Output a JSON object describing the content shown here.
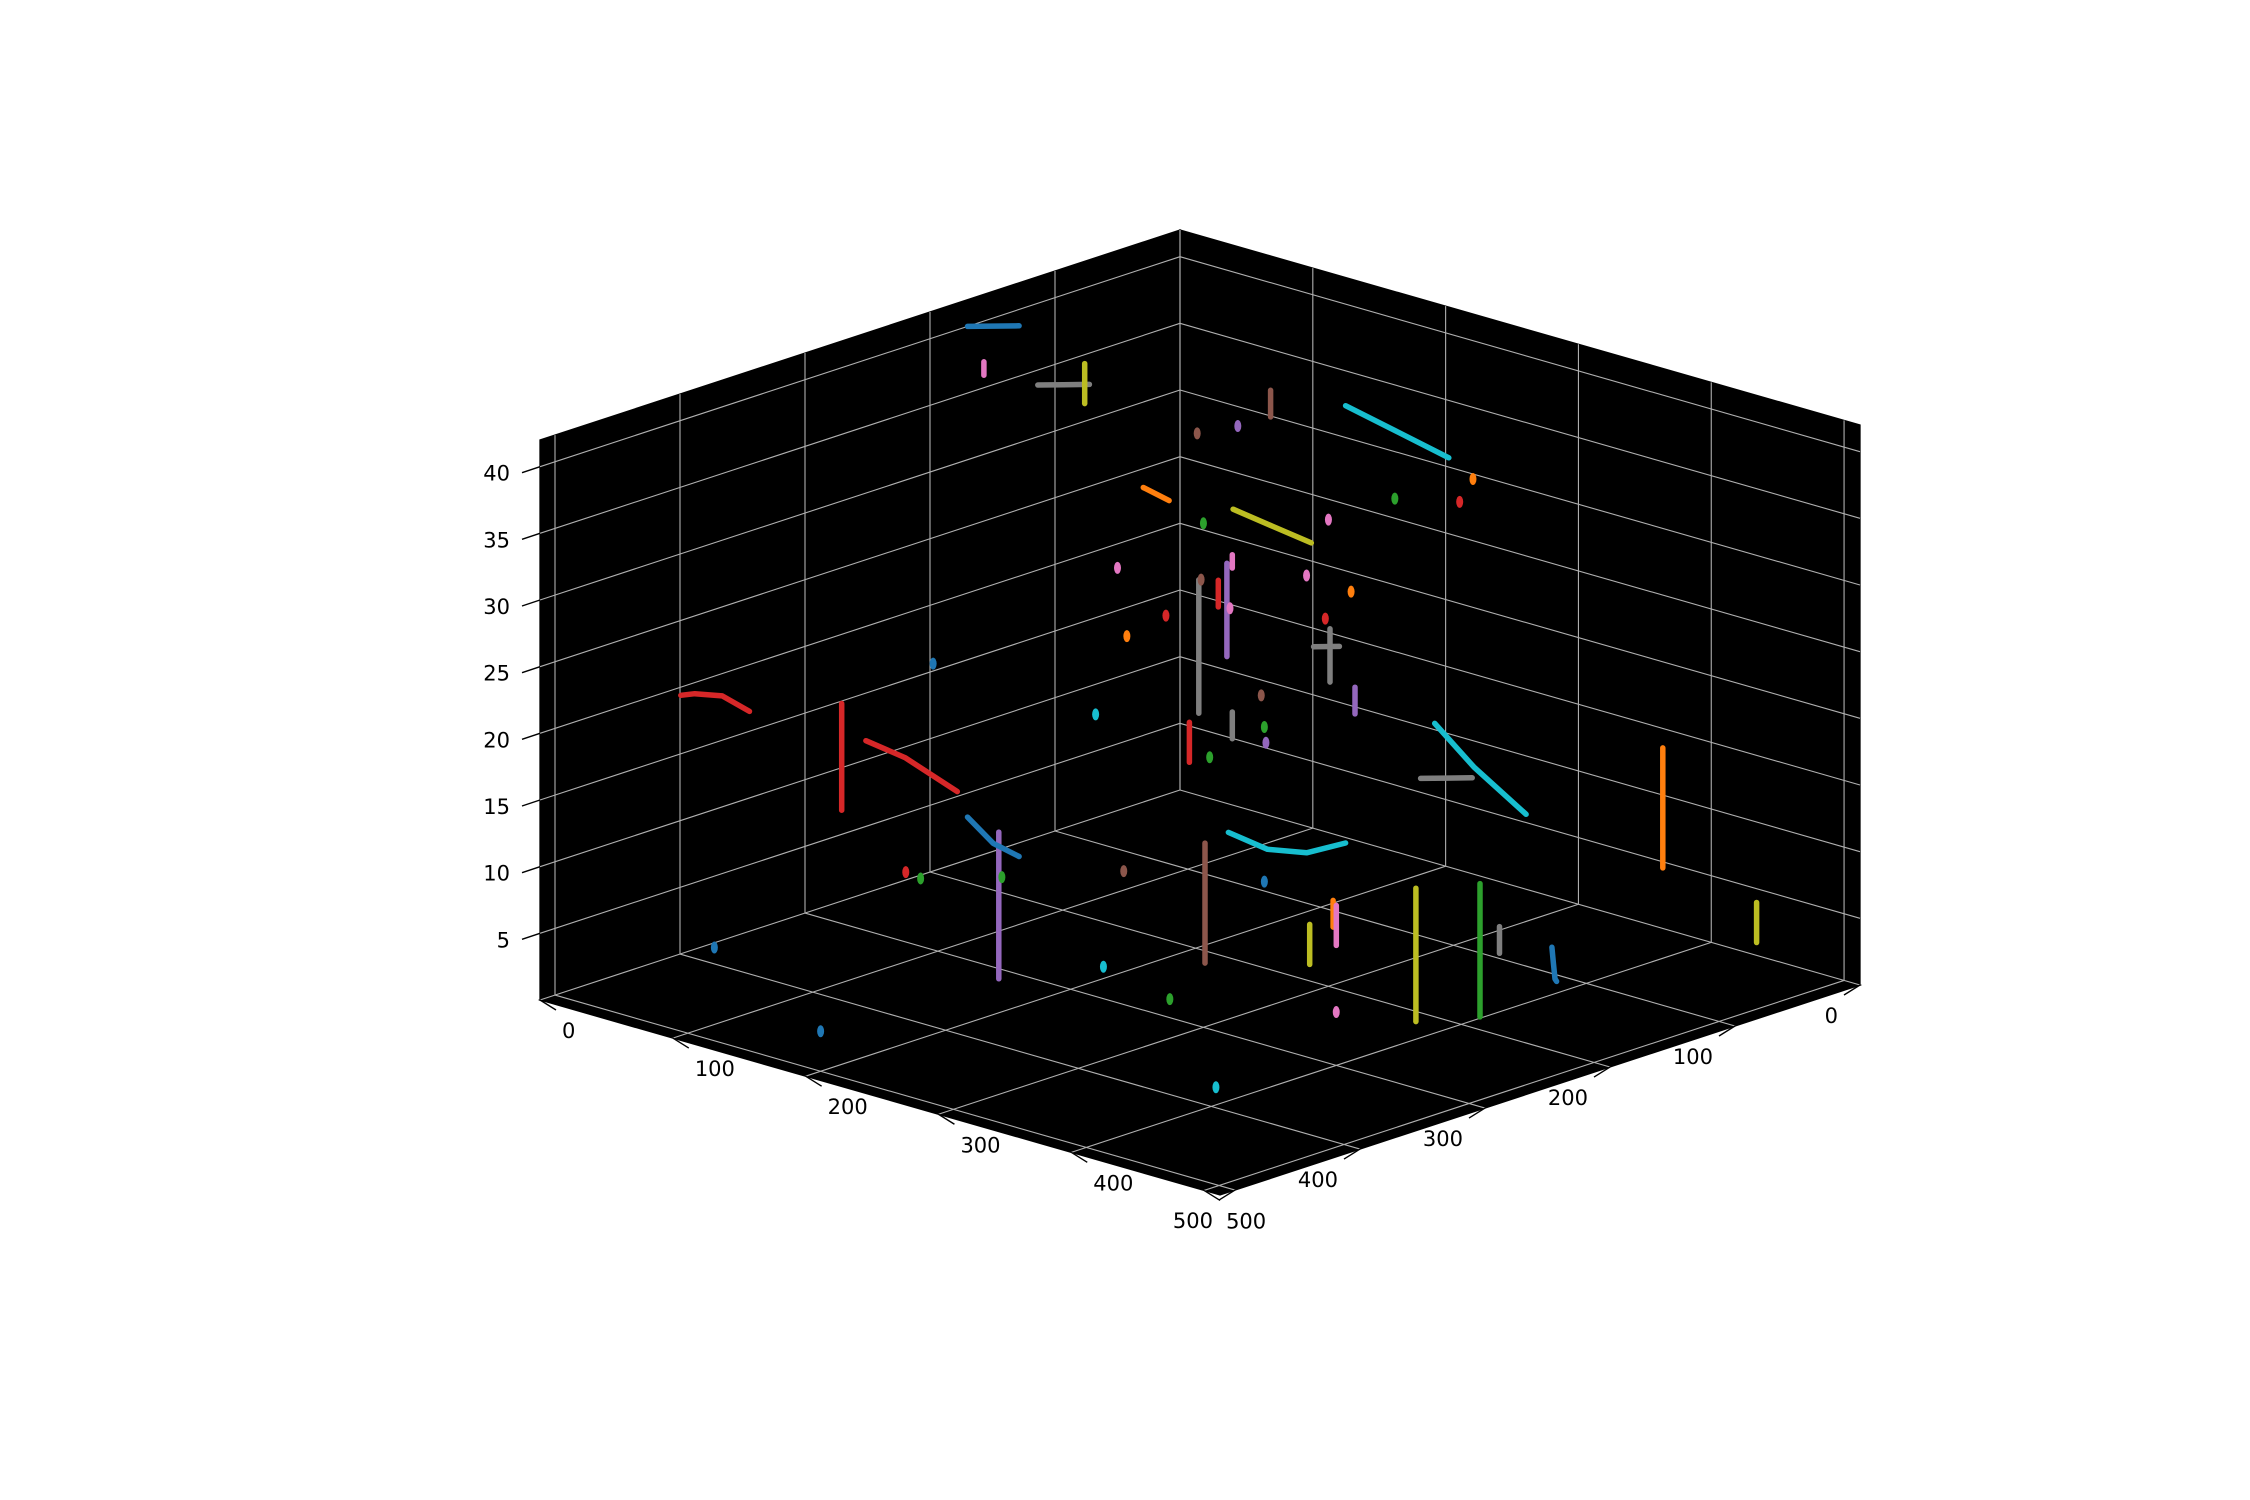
{
  "chart_data": {
    "type": "3d-line",
    "title": "",
    "xlabel": "",
    "ylabel": "",
    "zlabel": "",
    "xlim": [
      0,
      512
    ],
    "ylim": [
      0,
      512
    ],
    "zlim": [
      0,
      42
    ],
    "x_ticks": [
      0,
      100,
      200,
      300,
      400,
      500
    ],
    "y_ticks": [
      0,
      100,
      200,
      300,
      400,
      500
    ],
    "z_ticks": [
      5,
      10,
      15,
      20,
      25,
      30,
      35,
      40
    ],
    "x_tick_labels": [
      "0",
      "100",
      "200",
      "300",
      "400",
      "500"
    ],
    "y_tick_labels": [
      "0",
      "100",
      "200",
      "300",
      "400",
      "500"
    ],
    "z_tick_labels": [
      "5",
      "10",
      "15",
      "20",
      "25",
      "30",
      "35",
      "40"
    ],
    "grid": true,
    "pane_color": "#000000",
    "view": {
      "elev": 30,
      "azim": 45
    },
    "series_colors": [
      "#1f77b4",
      "#ff7f0e",
      "#2ca02c",
      "#d62728",
      "#9467bd",
      "#8c564b",
      "#e377c2",
      "#7f7f7f",
      "#bcbd22",
      "#17becf"
    ],
    "tracks": [
      {
        "color": "#d62728",
        "points": [
          [
            90,
            440,
            22
          ],
          [
            60,
            430,
            22
          ],
          [
            30,
            420,
            21
          ],
          [
            10,
            410,
            20
          ]
        ]
      },
      {
        "color": "#d62728",
        "points": [
          [
            150,
            430,
            24
          ],
          [
            150,
            430,
            20
          ],
          [
            150,
            430,
            16
          ]
        ]
      },
      {
        "color": "#d62728",
        "points": [
          [
            140,
            400,
            20
          ],
          [
            160,
            390,
            19
          ],
          [
            190,
            380,
            17
          ]
        ]
      },
      {
        "color": "#9467bd",
        "points": [
          [
            240,
            400,
            16
          ],
          [
            240,
            400,
            11
          ],
          [
            240,
            400,
            5
          ]
        ]
      },
      {
        "color": "#1f77b4",
        "points": [
          [
            160,
            340,
            13
          ],
          [
            170,
            330,
            11
          ],
          [
            180,
            320,
            10
          ]
        ]
      },
      {
        "color": "#17becf",
        "points": [
          [
            300,
            280,
            14
          ],
          [
            320,
            270,
            13
          ],
          [
            340,
            260,
            13
          ],
          [
            360,
            250,
            14
          ]
        ]
      },
      {
        "color": "#8c564b",
        "points": [
          [
            320,
            320,
            15
          ],
          [
            320,
            320,
            10
          ],
          [
            320,
            320,
            6
          ]
        ]
      },
      {
        "color": "#bcbd22",
        "points": [
          [
            380,
            300,
            10
          ],
          [
            380,
            300,
            7
          ]
        ]
      },
      {
        "color": "#ff7f0e",
        "points": [
          [
            360,
            260,
            10
          ],
          [
            360,
            260,
            8
          ]
        ]
      },
      {
        "color": "#e377c2",
        "points": [
          [
            400,
            300,
            12
          ],
          [
            400,
            300,
            9
          ]
        ]
      },
      {
        "color": "#bcbd22",
        "points": [
          [
            460,
            300,
            15
          ],
          [
            460,
            300,
            10
          ],
          [
            460,
            300,
            5
          ]
        ]
      },
      {
        "color": "#17becf",
        "points": [
          [
            380,
            200,
            22
          ],
          [
            400,
            190,
            19
          ],
          [
            430,
            180,
            16
          ]
        ]
      },
      {
        "color": "#1f77b4",
        "points": [
          [
            500,
            230,
            7
          ],
          [
            480,
            210,
            6
          ],
          [
            460,
            190,
            6
          ],
          [
            440,
            170,
            6
          ]
        ]
      },
      {
        "color": "#2ca02c",
        "points": [
          [
            480,
            270,
            15
          ],
          [
            480,
            270,
            10
          ],
          [
            480,
            270,
            5
          ]
        ]
      },
      {
        "color": "#ff7f0e",
        "points": [
          [
            420,
            60,
            17
          ],
          [
            420,
            60,
            12
          ],
          [
            420,
            60,
            8
          ]
        ]
      },
      {
        "color": "#bcbd22",
        "points": [
          [
            500,
            70,
            8
          ],
          [
            500,
            70,
            5
          ]
        ]
      },
      {
        "color": "#17becf",
        "points": [
          [
            240,
            40,
            33
          ],
          [
            220,
            60,
            35
          ],
          [
            200,
            80,
            37
          ]
        ]
      },
      {
        "color": "#9467bd",
        "points": [
          [
            280,
            260,
            33
          ],
          [
            280,
            260,
            29
          ],
          [
            280,
            260,
            26
          ]
        ]
      },
      {
        "color": "#7f7f7f",
        "points": [
          [
            240,
            240,
            30
          ],
          [
            240,
            240,
            25
          ],
          [
            240,
            240,
            20
          ]
        ]
      },
      {
        "color": "#7f7f7f",
        "points": [
          [
            120,
            200,
            40
          ],
          [
            110,
            210,
            40
          ],
          [
            100,
            220,
            40
          ]
        ]
      },
      {
        "color": "#1f77b4",
        "points": [
          [
            20,
            150,
            40
          ],
          [
            10,
            160,
            40
          ],
          [
            0,
            170,
            40
          ]
        ]
      },
      {
        "color": "#bcbd22",
        "points": [
          [
            60,
            140,
            38
          ],
          [
            60,
            140,
            35
          ]
        ]
      },
      {
        "color": "#ff7f0e",
        "points": [
          [
            180,
            200,
            33
          ],
          [
            170,
            210,
            34
          ]
        ]
      },
      {
        "color": "#bcbd22",
        "points": [
          [
            240,
            150,
            30
          ],
          [
            220,
            160,
            31
          ],
          [
            200,
            170,
            32
          ]
        ]
      },
      {
        "color": "#9467bd",
        "points": [
          [
            320,
            200,
            23
          ],
          [
            320,
            200,
            21
          ]
        ]
      },
      {
        "color": "#7f7f7f",
        "points": [
          [
            380,
            170,
            17
          ],
          [
            370,
            180,
            17
          ],
          [
            360,
            190,
            17
          ]
        ]
      },
      {
        "color": "#7f7f7f",
        "points": [
          [
            280,
            170,
            24
          ],
          [
            270,
            180,
            24
          ]
        ]
      },
      {
        "color": "#d62728",
        "points": [
          [
            280,
            290,
            22
          ],
          [
            280,
            290,
            19
          ]
        ]
      },
      {
        "color": "#7f7f7f",
        "points": [
          [
            350,
            330,
            26
          ],
          [
            350,
            330,
            24
          ]
        ]
      },
      {
        "color": "#7f7f7f",
        "points": [
          [
            320,
            220,
            28
          ],
          [
            320,
            220,
            24
          ]
        ]
      },
      {
        "color": "#d62728",
        "points": [
          [
            330,
            320,
            35
          ],
          [
            330,
            320,
            33
          ]
        ]
      },
      {
        "color": "#e377c2",
        "points": [
          [
            190,
            160,
            28
          ],
          [
            190,
            160,
            27
          ]
        ]
      },
      {
        "color": "#7f7f7f",
        "points": [
          [
            410,
            180,
            7
          ],
          [
            410,
            180,
            5
          ]
        ]
      },
      {
        "color": "#8c564b",
        "points": [
          [
            200,
            140,
            40
          ],
          [
            200,
            140,
            38
          ]
        ]
      },
      {
        "color": "#e377c2",
        "points": [
          [
            50,
            210,
            40
          ],
          [
            50,
            210,
            39
          ]
        ]
      }
    ],
    "dots": [
      {
        "color": "#17becf",
        "point": [
          460,
          460,
          5
        ]
      },
      {
        "color": "#e377c2",
        "point": [
          400,
          300,
          4
        ]
      },
      {
        "color": "#1f77b4",
        "point": [
          200,
          500,
          3
        ]
      },
      {
        "color": "#2ca02c",
        "point": [
          200,
          420,
          12
        ]
      },
      {
        "color": "#d62728",
        "point": [
          170,
          400,
          11
        ]
      },
      {
        "color": "#1f77b4",
        "point": [
          120,
          500,
          7
        ]
      },
      {
        "color": "#17becf",
        "point": [
          300,
          380,
          7
        ]
      },
      {
        "color": "#2ca02c",
        "point": [
          350,
          380,
          6
        ]
      },
      {
        "color": "#d62728",
        "point": [
          380,
          180,
          38
        ]
      },
      {
        "color": "#ff7f0e",
        "point": [
          390,
          180,
          40
        ]
      },
      {
        "color": "#2ca02c",
        "point": [
          350,
          200,
          38
        ]
      },
      {
        "color": "#e377c2",
        "point": [
          300,
          200,
          35
        ]
      },
      {
        "color": "#d62728",
        "point": [
          420,
          330,
          35
        ]
      },
      {
        "color": "#ff7f0e",
        "point": [
          430,
          320,
          37
        ]
      },
      {
        "color": "#e377c2",
        "point": [
          320,
          300,
          32
        ]
      },
      {
        "color": "#2ca02c",
        "point": [
          380,
          380,
          25
        ]
      },
      {
        "color": "#1f77b4",
        "point": [
          440,
          400,
          18
        ]
      },
      {
        "color": "#ff7f0e",
        "point": [
          280,
          340,
          30
        ]
      },
      {
        "color": "#2ca02c",
        "point": [
          280,
          440,
          15
        ]
      },
      {
        "color": "#8c564b",
        "point": [
          240,
          300,
          10
        ]
      },
      {
        "color": "#17becf",
        "point": [
          200,
          280,
          20
        ]
      },
      {
        "color": "#e377c2",
        "point": [
          160,
          220,
          28
        ]
      },
      {
        "color": "#9467bd",
        "point": [
          100,
          60,
          32
        ]
      },
      {
        "color": "#8c564b",
        "point": [
          60,
          50,
          30
        ]
      },
      {
        "color": "#1f77b4",
        "point": [
          40,
          240,
          18
        ]
      },
      {
        "color": "#2ca02c",
        "point": [
          140,
          130,
          28
        ]
      },
      {
        "color": "#8c564b",
        "point": [
          110,
          100,
          22
        ]
      },
      {
        "color": "#d62728",
        "point": [
          140,
          160,
          22
        ]
      },
      {
        "color": "#e377c2",
        "point": [
          180,
          90,
          24
        ]
      },
      {
        "color": "#2ca02c",
        "point": [
          120,
          60,
          10
        ]
      },
      {
        "color": "#8c564b",
        "point": [
          80,
          20,
          10
        ]
      },
      {
        "color": "#9467bd",
        "point": [
          140,
          80,
          10
        ]
      }
    ]
  }
}
